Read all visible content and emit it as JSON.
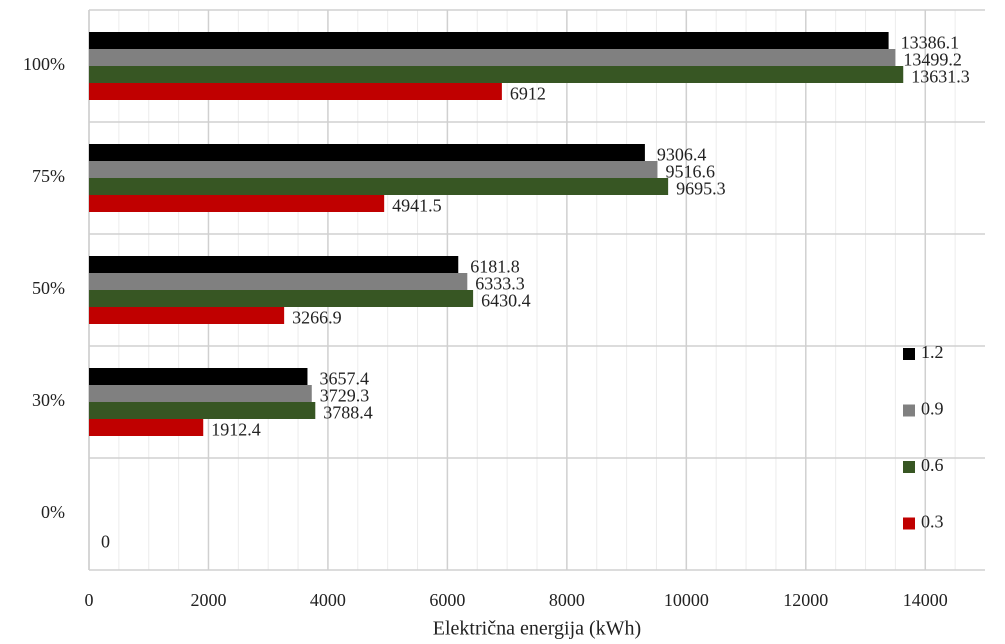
{
  "chart_data": {
    "type": "hbar",
    "x_label": "Električna energija (kWh)",
    "categories": [
      "0%",
      "30%",
      "50%",
      "75%",
      "100%"
    ],
    "series": [
      {
        "name": "1.2",
        "color": "#000000",
        "values": [
          0,
          3657.4,
          6181.8,
          9306.4,
          13386.1
        ],
        "value_labels": [
          null,
          "3657.4",
          "6181.8",
          "9306.4",
          "13386.1"
        ]
      },
      {
        "name": "0.9",
        "color": "#808080",
        "values": [
          0,
          3729.3,
          6333.3,
          9516.6,
          13499.2
        ],
        "value_labels": [
          null,
          "3729.3",
          "6333.3",
          "9516.6",
          "13499.2"
        ]
      },
      {
        "name": "0.6",
        "color": "#375623",
        "values": [
          0,
          3788.4,
          6430.4,
          9695.3,
          13631.3
        ],
        "value_labels": [
          null,
          "3788.4",
          "6430.4",
          "9695.3",
          "13631.3"
        ]
      },
      {
        "name": "0.3",
        "color": "#c00000",
        "values": [
          0,
          1912.4,
          3266.9,
          4941.5,
          6912
        ],
        "value_labels": [
          "0",
          "1912.4",
          "3266.9",
          "4941.5",
          "6912"
        ]
      }
    ],
    "xlim": [
      0,
      15000
    ],
    "xticks": [
      0,
      2000,
      4000,
      6000,
      8000,
      10000,
      12000,
      14000
    ],
    "grid": true,
    "legend": "right"
  }
}
